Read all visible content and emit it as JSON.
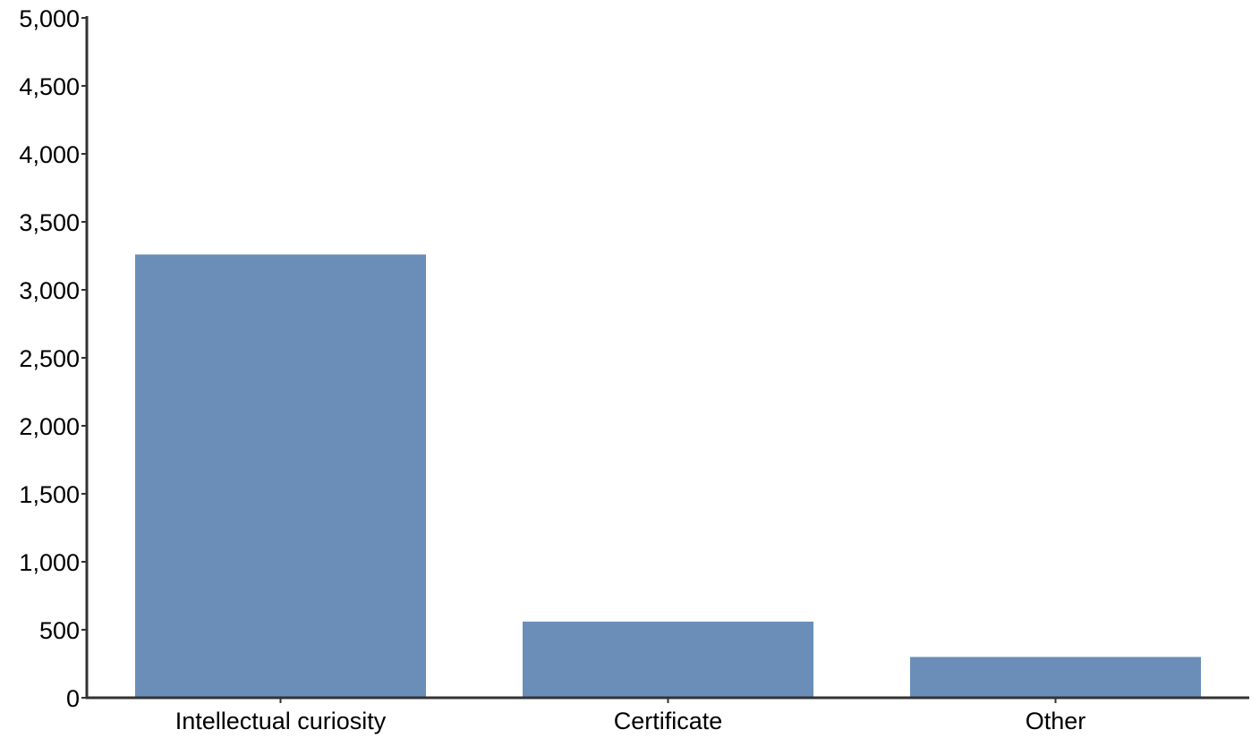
{
  "chart_data": {
    "type": "bar",
    "title": "",
    "xlabel": "",
    "ylabel": "",
    "categories": [
      "Intellectual curiosity",
      "Certificate",
      "Other"
    ],
    "values": [
      3260,
      560,
      300
    ],
    "ylim": [
      0,
      5000
    ],
    "yticks": [
      0,
      500,
      1000,
      1500,
      2000,
      2500,
      3000,
      3500,
      4000,
      4500,
      5000
    ],
    "ytick_labels": [
      "0",
      "500",
      "1,000",
      "1,500",
      "2,000",
      "2,500",
      "3,000",
      "3,500",
      "4,000",
      "4,500",
      "5,000"
    ],
    "grid": false,
    "legend": "none",
    "bar_color": "#6a8eb7",
    "axis_color": "#333333"
  }
}
